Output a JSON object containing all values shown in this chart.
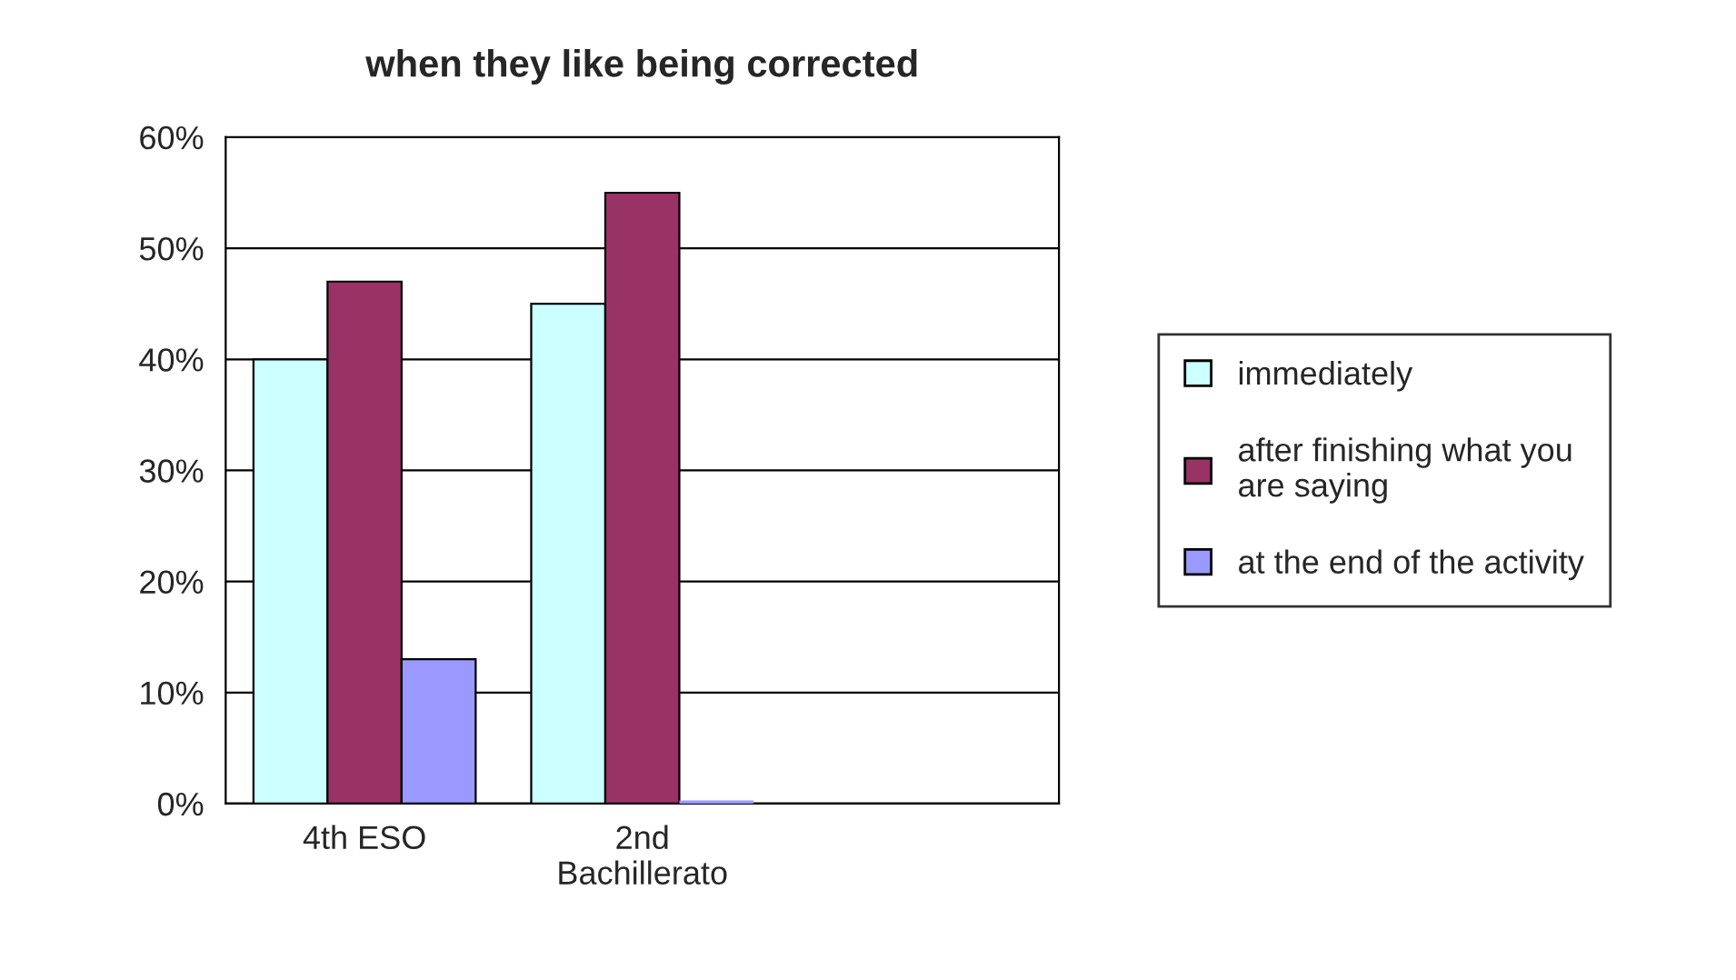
{
  "chart_data": {
    "type": "bar",
    "title": "when they like being corrected",
    "categories": [
      "4th ESO",
      "2nd Bachillerato",
      null
    ],
    "series": [
      {
        "name": "immediately",
        "color": "#ccffff",
        "values": [
          40,
          45,
          null
        ]
      },
      {
        "name": "after finishing what you are saying",
        "color": "#993366",
        "values": [
          47,
          55,
          null
        ]
      },
      {
        "name": "at the end of the activity",
        "color": "#9999ff",
        "values": [
          13,
          0,
          null
        ]
      }
    ],
    "ylim": [
      0,
      60
    ],
    "yticks": [
      {
        "value": 0,
        "label": "0%"
      },
      {
        "value": 10,
        "label": "10%"
      },
      {
        "value": 20,
        "label": "20%"
      },
      {
        "value": 30,
        "label": "30%"
      },
      {
        "value": 40,
        "label": "40%"
      },
      {
        "value": 50,
        "label": "50%"
      },
      {
        "value": 60,
        "label": "60%"
      }
    ],
    "grid": "y",
    "legend": "right"
  }
}
